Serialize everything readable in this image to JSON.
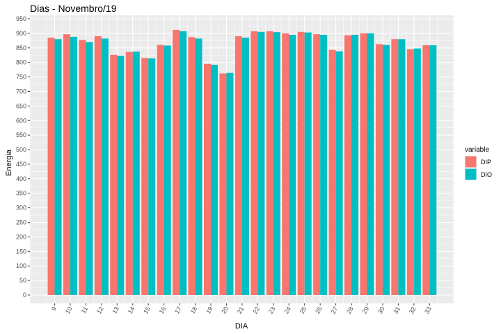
{
  "chart_data": {
    "type": "bar",
    "title": "Dias - Novembro/19",
    "xlabel": "DIA",
    "ylabel": "Energia",
    "ylim": [
      0,
      950
    ],
    "y_ticks": [
      0,
      50,
      100,
      150,
      200,
      250,
      300,
      350,
      400,
      450,
      500,
      550,
      600,
      650,
      700,
      750,
      800,
      850,
      900,
      950
    ],
    "grid": true,
    "legend": {
      "title": "variable",
      "placement": "right"
    },
    "categories": [
      "9",
      "10",
      "11",
      "12",
      "13",
      "14",
      "15",
      "16",
      "17",
      "18",
      "19",
      "20",
      "21",
      "22",
      "23",
      "24",
      "25",
      "26",
      "27",
      "28",
      "29",
      "30",
      "31",
      "32",
      "33"
    ],
    "series": [
      {
        "name": "DIP",
        "color": "#F8766D",
        "values": [
          885,
          897,
          877,
          890,
          826,
          836,
          815,
          860,
          912,
          887,
          795,
          762,
          890,
          907,
          907,
          900,
          905,
          897,
          843,
          893,
          900,
          863,
          880,
          845,
          859
        ]
      },
      {
        "name": "DIO",
        "color": "#00BFC4",
        "values": [
          880,
          888,
          870,
          882,
          823,
          837,
          814,
          858,
          907,
          882,
          792,
          764,
          885,
          905,
          904,
          895,
          903,
          895,
          838,
          895,
          900,
          860,
          880,
          848,
          859
        ]
      }
    ]
  }
}
